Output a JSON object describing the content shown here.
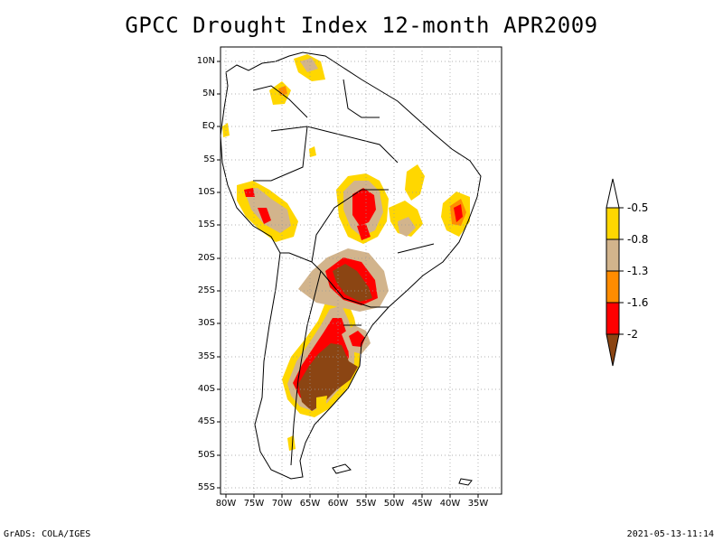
{
  "title": "GPCC Drought Index 12-month APR2009",
  "lat_labels": [
    "10N",
    "5N",
    "EQ",
    "5S",
    "10S",
    "15S",
    "20S",
    "25S",
    "30S",
    "35S",
    "40S",
    "45S",
    "50S",
    "55S"
  ],
  "lon_labels": [
    "80W",
    "75W",
    "70W",
    "65W",
    "60W",
    "55W",
    "50W",
    "45W",
    "40W",
    "35W"
  ],
  "legend": {
    "labels": [
      "-0.5",
      "-0.8",
      "-1.3",
      "-1.6",
      "-2"
    ],
    "colors": {
      "above_-0.5": "#ffffff",
      "-0.5_to_-0.8": "#ffd700",
      "-0.8_to_-1.3": "#d2b48c",
      "-1.3_to_-1.6": "#ff8c00",
      "-1.6_to_-2": "#ff0000",
      "below_-2": "#8b4513"
    }
  },
  "footer": {
    "left": "GrADS: COLA/IGES",
    "right": "2021-05-13-11:14"
  }
}
